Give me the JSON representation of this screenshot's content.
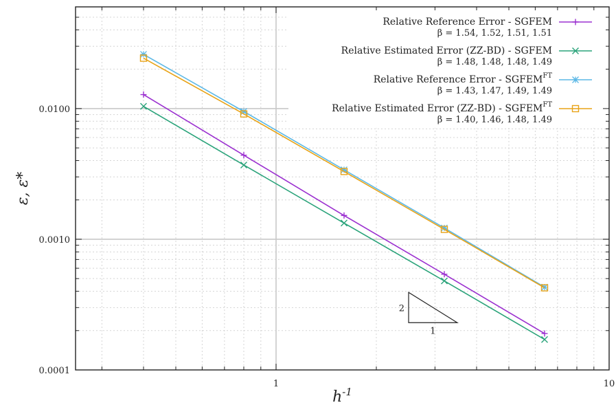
{
  "chart_data": {
    "type": "line",
    "title": "",
    "xlabel": "h^{-1}",
    "ylabel": "ε, ε*",
    "xscale": "log",
    "yscale": "log",
    "xlim": [
      0.25,
      10
    ],
    "ylim": [
      0.0001,
      0.06
    ],
    "x_tick_labels": [
      {
        "value": 1,
        "label": "1"
      },
      {
        "value": 10,
        "label": "10"
      }
    ],
    "y_tick_labels": [
      {
        "value": 0.0001,
        "label": "0.0001"
      },
      {
        "value": 0.001,
        "label": "0.0010"
      },
      {
        "value": 0.01,
        "label": "0.0100"
      }
    ],
    "grid": "minor dotted, major solid",
    "legend_position": "top-right",
    "x": [
      0.4,
      0.8,
      1.6,
      3.2,
      6.4
    ],
    "series": [
      {
        "name": "Relative Reference Error - SGFEM",
        "beta": "β = 1.54, 1.52, 1.51, 1.51",
        "color": "#9b30d0",
        "marker": "plus",
        "values": [
          0.0128,
          0.0044,
          0.00152,
          0.00054,
          0.00019
        ]
      },
      {
        "name": "Relative Estimated Error (ZZ-BD) - SGFEM",
        "beta": "β = 1.48, 1.48, 1.48, 1.49",
        "color": "#2aa37a",
        "marker": "cross",
        "values": [
          0.0104,
          0.0037,
          0.00133,
          0.00048,
          0.000171
        ]
      },
      {
        "name": "Relative Reference Error - SGFEM",
        "name_sup": "FT",
        "beta": "β = 1.43, 1.47, 1.49, 1.49",
        "color": "#5cb8e6",
        "marker": "star",
        "values": [
          0.026,
          0.0095,
          0.0034,
          0.00122,
          0.00043
        ]
      },
      {
        "name": "Relative Estimated Error (ZZ-BD) - SGFEM",
        "name_sup": "FT",
        "beta": "β = 1.40, 1.46, 1.48, 1.49",
        "color": "#e8a317",
        "marker": "square",
        "values": [
          0.0243,
          0.0091,
          0.0033,
          0.00119,
          0.000425
        ]
      }
    ],
    "slope_triangle": {
      "rise_label": "2",
      "run_label": "1",
      "x_start": 2.5,
      "x_end": 3.5,
      "y_base": 0.00023
    }
  }
}
